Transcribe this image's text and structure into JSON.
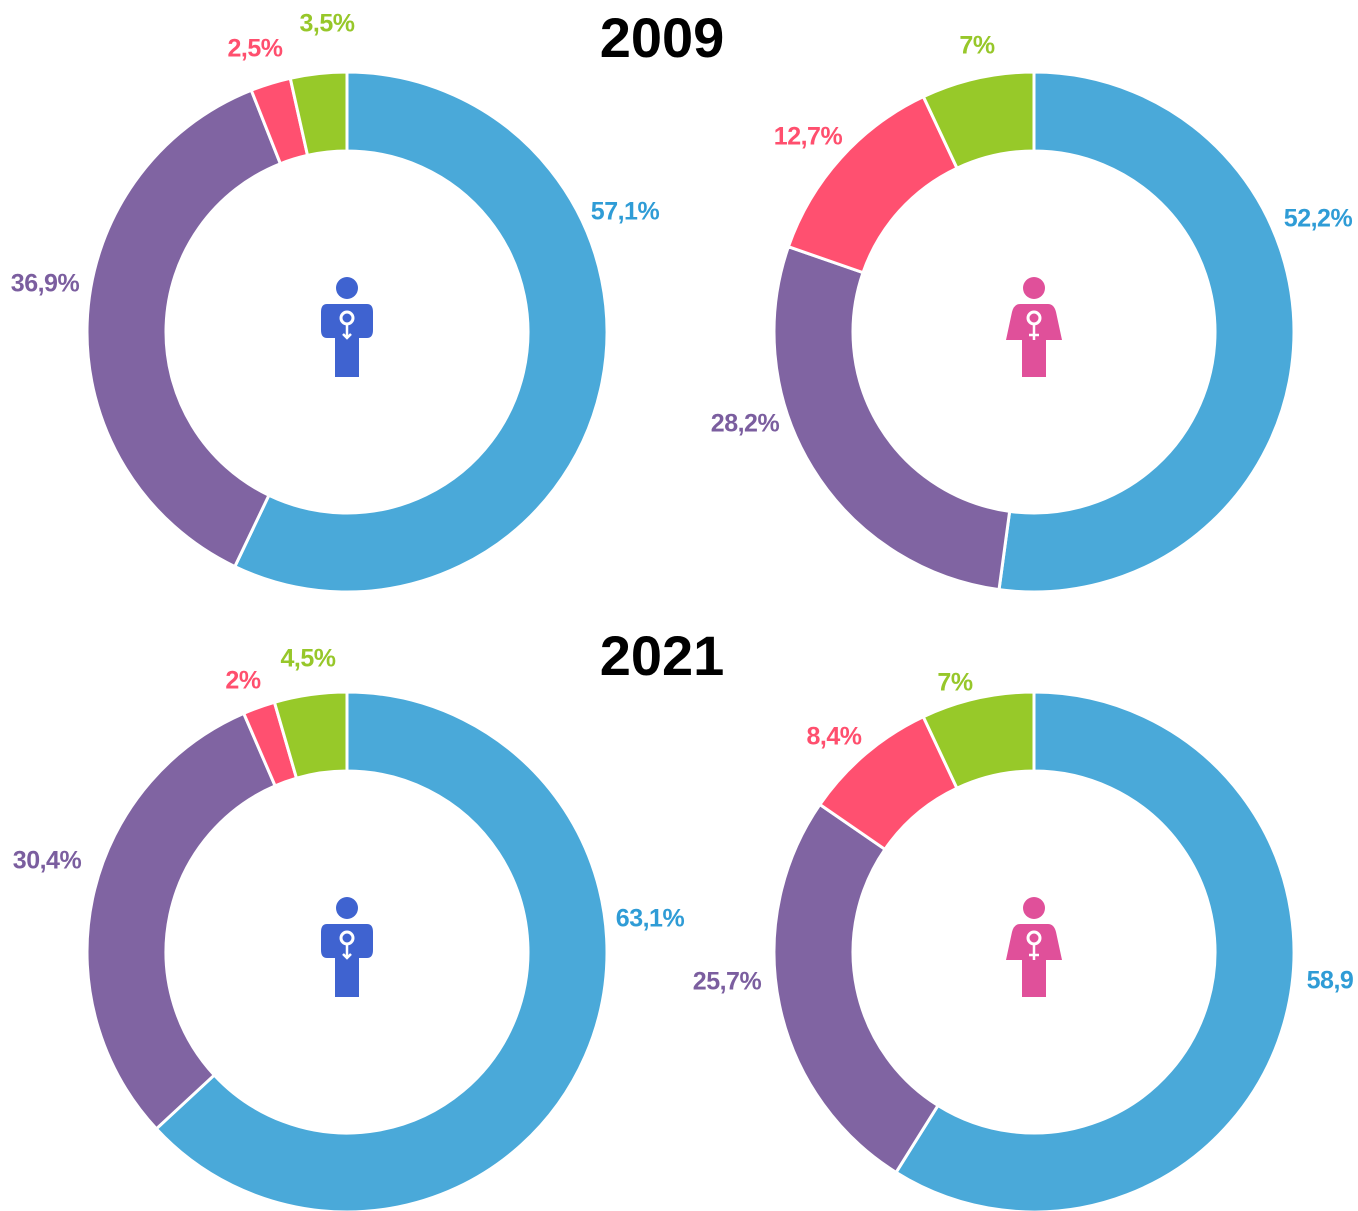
{
  "headings": [
    "2009",
    "2021"
  ],
  "chart_data": [
    {
      "type": "donut",
      "colors": [
        "#4aa9d9",
        "#8064a2",
        "#ff5070",
        "#97c929"
      ],
      "label_colors": [
        "#2f9cd6",
        "#7b5e9f",
        "#ff4f6e",
        "#97c72a"
      ],
      "values": [
        57.1,
        36.9,
        2.5,
        3.5
      ],
      "value_labels": [
        "57,1%",
        "36,9%",
        "2,5%",
        "3,5%"
      ]
    },
    {
      "type": "donut",
      "colors": [
        "#4aa9d9",
        "#8064a2",
        "#ff5070",
        "#97c929"
      ],
      "label_colors": [
        "#2f9cd6",
        "#7b5e9f",
        "#ff4f6e",
        "#97c72a"
      ],
      "values": [
        52.2,
        28.2,
        12.7,
        7
      ],
      "value_labels": [
        "52,2%",
        "28,2%",
        "12,7%",
        "7%"
      ]
    },
    {
      "type": "donut",
      "colors": [
        "#4aa9d9",
        "#8064a2",
        "#ff5070",
        "#97c929"
      ],
      "label_colors": [
        "#2f9cd6",
        "#7b5e9f",
        "#ff4f6e",
        "#97c72a"
      ],
      "values": [
        63.1,
        30.4,
        2,
        4.5
      ],
      "value_labels": [
        "63,1%",
        "30,4%",
        "2%",
        "4,5%"
      ]
    },
    {
      "type": "donut",
      "colors": [
        "#4aa9d9",
        "#8064a2",
        "#ff5070",
        "#97c929"
      ],
      "label_colors": [
        "#2f9cd6",
        "#7b5e9f",
        "#ff4f6e",
        "#97c72a"
      ],
      "values": [
        58.9,
        25.7,
        8.4,
        7
      ],
      "value_labels": [
        "58,9",
        "25,7%",
        "8,4%",
        "7%"
      ]
    }
  ]
}
